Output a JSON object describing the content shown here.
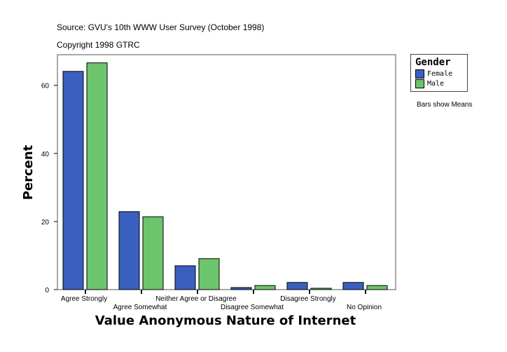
{
  "header": {
    "source": "Source: GVU's 10th WWW User Survey (October 1998)",
    "copyright": "Copyright 1998 GTRC"
  },
  "legend": {
    "title": "Gender",
    "items": [
      "Female",
      "Male"
    ]
  },
  "note": "Bars show Means",
  "chart_data": {
    "type": "bar",
    "title": "",
    "xlabel": "Value Anonymous Nature of Internet",
    "ylabel": "Percent",
    "ylim": [
      0,
      69
    ],
    "yticks": [
      0,
      20,
      40,
      60
    ],
    "grid": false,
    "legend_position": "right",
    "categories": [
      "Agree Strongly",
      "Agree Somewhat",
      "Neither Agree or Disagree",
      "Disagree Somewhat",
      "Disagree Strongly",
      "No Opinion"
    ],
    "series": [
      {
        "name": "Female",
        "color": "#3a5fbf",
        "values": [
          64.1,
          22.9,
          7.0,
          0.6,
          2.1,
          2.1
        ]
      },
      {
        "name": "Male",
        "color": "#6cc46c",
        "values": [
          66.6,
          21.4,
          9.1,
          1.2,
          0.4,
          1.2
        ]
      }
    ]
  }
}
